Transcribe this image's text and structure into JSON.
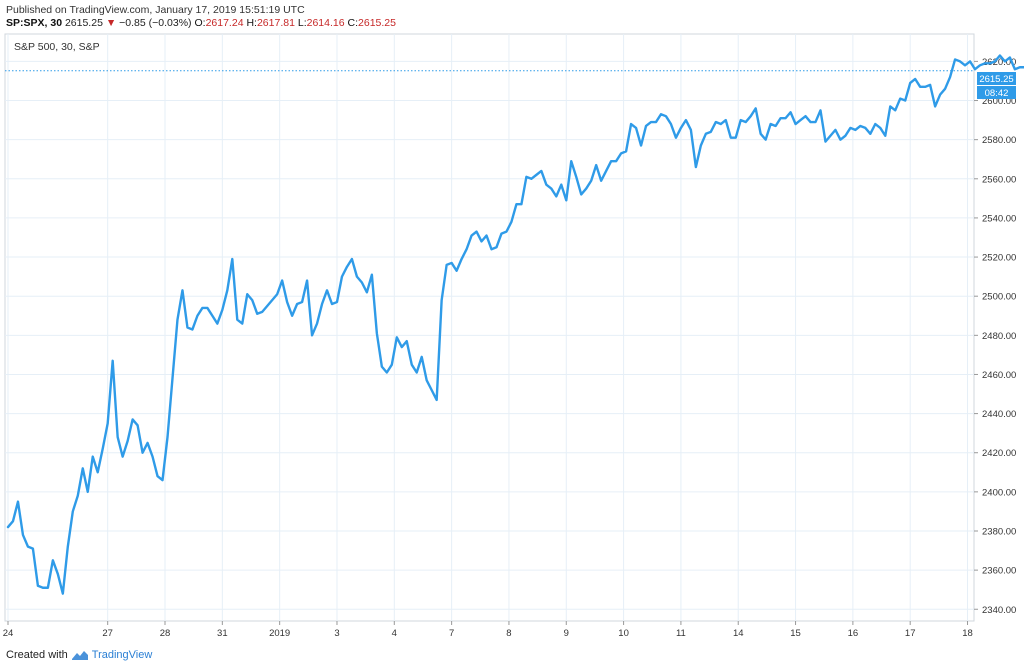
{
  "header": {
    "published": "Published on TradingView.com, January 17, 2019 15:51:19 UTC",
    "symbol": "SP:SPX, 30",
    "last": "2615.25",
    "change_arrow": "▼",
    "change": "−0.85 (−0.03%)",
    "open_label": "O:",
    "open": "2617.24",
    "high_label": "H:",
    "high": "2617.81",
    "low_label": "L:",
    "low": "2614.16",
    "close_label": "C:",
    "close": "2615.25"
  },
  "legend": "S&P 500, 30, S&P",
  "price_tag": "2615.25",
  "countdown_tag": "08:42",
  "footer": {
    "created_with": "Created with",
    "brand": "TradingView"
  },
  "colors": {
    "line": "#2f9be8",
    "grid": "#e6eff7",
    "tag": "#2f9be8",
    "negative": "#c62828"
  },
  "chart_data": {
    "type": "line",
    "title": "",
    "xlabel": "",
    "ylabel": "",
    "ylim": [
      2334,
      2634
    ],
    "xlim": [
      0,
      194
    ],
    "grid": true,
    "yticks": [
      2340,
      2360,
      2380,
      2400,
      2420,
      2440,
      2460,
      2480,
      2500,
      2520,
      2540,
      2560,
      2580,
      2600,
      2620
    ],
    "ytick_labels": [
      "2340.00",
      "2360.00",
      "2380.00",
      "2400.00",
      "2420.00",
      "2440.00",
      "2460.00",
      "2480.00",
      "2500.00",
      "2520.00",
      "2540.00",
      "2560.00",
      "2580.00",
      "2600.00",
      "2620.00"
    ],
    "xticks": [
      {
        "label": "24",
        "x": 0
      },
      {
        "label": "27",
        "x": 20
      },
      {
        "label": "28",
        "x": 31.5
      },
      {
        "label": "31",
        "x": 43
      },
      {
        "label": "2019",
        "x": 54.5
      },
      {
        "label": "3",
        "x": 66
      },
      {
        "label": "4",
        "x": 77.5
      },
      {
        "label": "7",
        "x": 89
      },
      {
        "label": "8",
        "x": 100.5
      },
      {
        "label": "9",
        "x": 112
      },
      {
        "label": "10",
        "x": 123.5
      },
      {
        "label": "11",
        "x": 135
      },
      {
        "label": "14",
        "x": 146.5
      },
      {
        "label": "15",
        "x": 158
      },
      {
        "label": "16",
        "x": 169.5
      },
      {
        "label": "17",
        "x": 181
      },
      {
        "label": "18",
        "x": 192.5
      }
    ],
    "series": [
      {
        "values": [
          2382,
          2385,
          2395,
          2378,
          2372,
          2371,
          2352,
          2351,
          2351,
          2365,
          2358,
          2348,
          2372,
          2390,
          2398,
          2412,
          2400,
          2418,
          2410,
          2422,
          2435,
          2467,
          2428,
          2418,
          2426,
          2437,
          2434,
          2420,
          2425,
          2418,
          2408,
          2406,
          2428,
          2458,
          2488,
          2503,
          2484,
          2483,
          2490,
          2494,
          2494,
          2490,
          2486,
          2493,
          2503,
          2519,
          2488,
          2486,
          2501,
          2498,
          2491,
          2492,
          2495,
          2498,
          2501,
          2508,
          2497,
          2490,
          2496,
          2497,
          2508,
          2480,
          2486,
          2496,
          2503,
          2496,
          2497,
          2510,
          2515,
          2519,
          2510,
          2507,
          2502,
          2511,
          2481,
          2464,
          2461,
          2465,
          2479,
          2474,
          2477,
          2465,
          2461,
          2469,
          2457,
          2452,
          2447,
          2498,
          2516,
          2517,
          2513,
          2519,
          2524,
          2531,
          2533,
          2528,
          2531,
          2524,
          2525,
          2532,
          2533,
          2538,
          2547,
          2547,
          2561,
          2560,
          2562,
          2564,
          2557,
          2555,
          2551,
          2557,
          2549,
          2569,
          2561,
          2552,
          2555,
          2559,
          2567,
          2559,
          2564,
          2569,
          2569,
          2573,
          2574,
          2588,
          2586,
          2577,
          2587,
          2589,
          2589,
          2593,
          2592,
          2588,
          2581,
          2586,
          2590,
          2585,
          2566,
          2577,
          2583,
          2584,
          2589,
          2588,
          2590,
          2581,
          2581,
          2590,
          2589,
          2592,
          2596,
          2583,
          2580,
          2588,
          2587,
          2591,
          2591,
          2594,
          2588,
          2590,
          2592,
          2589,
          2589,
          2595,
          2579,
          2582,
          2585,
          2580,
          2582,
          2586,
          2585,
          2587,
          2586,
          2583,
          2588,
          2586,
          2582,
          2597,
          2595,
          2601,
          2600,
          2609,
          2611,
          2607,
          2607,
          2608,
          2597,
          2603,
          2606,
          2612,
          2621,
          2620,
          2618,
          2620,
          2616,
          2618,
          2619,
          2619,
          2620,
          2623,
          2620,
          2622,
          2616,
          2617,
          2617,
          2615.25
        ]
      }
    ]
  }
}
